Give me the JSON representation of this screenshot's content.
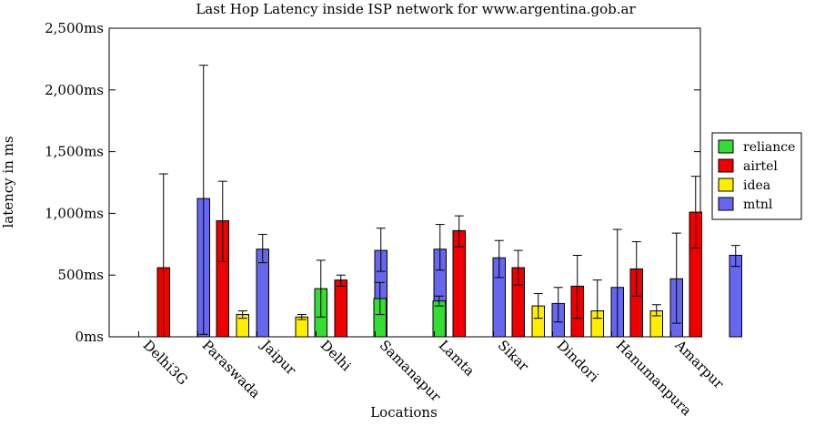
{
  "chart_data": {
    "type": "bar",
    "title": "Last Hop Latency inside ISP network for www.argentina.gob.ar",
    "xlabel": "Locations",
    "ylabel": "latency in ms",
    "ylim": [
      0,
      2500
    ],
    "yticks": [
      0,
      500,
      1000,
      1500,
      2000,
      2500
    ],
    "ytick_labels": [
      "0ms",
      "500ms",
      "1,000ms",
      "1,500ms",
      "2,000ms",
      "2,500ms"
    ],
    "grid": false,
    "legend_position": "right",
    "error_bars": true,
    "categories": [
      "Delhi3G",
      "Paraswada",
      "Jaipur",
      "Delhi",
      "Samanapur",
      "Lamta",
      "Sikar",
      "Dindori",
      "Hanumanpura",
      "Amarpur"
    ],
    "series": [
      {
        "name": "reliance",
        "color": "#33dd33",
        "values": [
          null,
          null,
          null,
          390,
          310,
          290,
          null,
          null,
          null,
          null
        ],
        "err_low": [
          null,
          null,
          null,
          160,
          180,
          250,
          null,
          null,
          null,
          null
        ],
        "err_high": [
          null,
          null,
          null,
          620,
          440,
          330,
          null,
          null,
          null,
          null
        ]
      },
      {
        "name": "airtel",
        "color": "#ee0000",
        "values": [
          560,
          940,
          null,
          460,
          null,
          860,
          560,
          410,
          550,
          1010
        ],
        "err_low": [
          0,
          610,
          null,
          410,
          null,
          730,
          420,
          150,
          330,
          720
        ],
        "err_high": [
          1320,
          1260,
          null,
          500,
          null,
          980,
          700,
          660,
          770,
          1300
        ]
      },
      {
        "name": "idea",
        "color": "#ffee00",
        "values": [
          null,
          180,
          160,
          null,
          null,
          null,
          250,
          210,
          210,
          null
        ],
        "err_low": [
          null,
          150,
          140,
          null,
          null,
          null,
          150,
          150,
          170,
          null
        ],
        "err_high": [
          null,
          210,
          180,
          null,
          null,
          null,
          350,
          460,
          260,
          null
        ]
      },
      {
        "name": "mtnl",
        "color": "#6666ee",
        "values": [
          1120,
          710,
          null,
          700,
          710,
          640,
          270,
          400,
          470,
          660
        ],
        "err_low": [
          20,
          600,
          null,
          530,
          540,
          480,
          120,
          0,
          110,
          570
        ],
        "err_high": [
          2200,
          830,
          null,
          880,
          910,
          780,
          400,
          870,
          840,
          740
        ]
      }
    ]
  }
}
